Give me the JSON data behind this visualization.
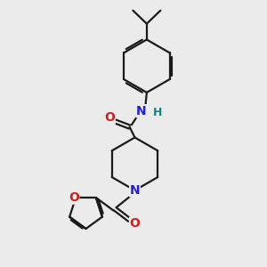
{
  "bg_color": "#ebebeb",
  "bond_color": "#1a1a1a",
  "N_color": "#2020cc",
  "O_color": "#cc2020",
  "H_color": "#008b8b",
  "line_width": 1.6,
  "font_size_atom": 10,
  "fig_size": [
    3.0,
    3.0
  ],
  "dpi": 100,
  "xlim": [
    0,
    10
  ],
  "ylim": [
    0,
    10
  ]
}
